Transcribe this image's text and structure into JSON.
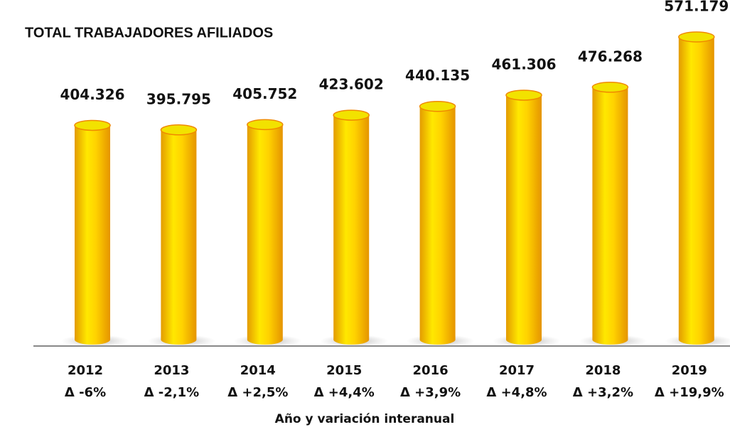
{
  "chart_data": {
    "type": "bar",
    "title": "TOTAL TRABAJADORES AFILIADOS",
    "categories": [
      [
        "2012",
        "Δ -6%"
      ],
      [
        "2013",
        "Δ -2,1%"
      ],
      [
        "2014",
        "Δ +2,5%"
      ],
      [
        "2015",
        "Δ +4,4%"
      ],
      [
        "2016",
        "Δ +3,9%"
      ],
      [
        "2017",
        "Δ +4,8%"
      ],
      [
        "2018",
        "Δ +3,2%"
      ],
      [
        "2019",
        "Δ +19,9%"
      ]
    ],
    "values": [
      404326,
      395795,
      405752,
      423602,
      440135,
      461306,
      476268,
      571179
    ],
    "value_labels": [
      "404.326",
      "395.795",
      "405.752",
      "423.602",
      "440.135",
      "461.306",
      "476.268",
      "571.179"
    ],
    "x_label": "Año y variación interanual",
    "color": "#f5c400"
  }
}
